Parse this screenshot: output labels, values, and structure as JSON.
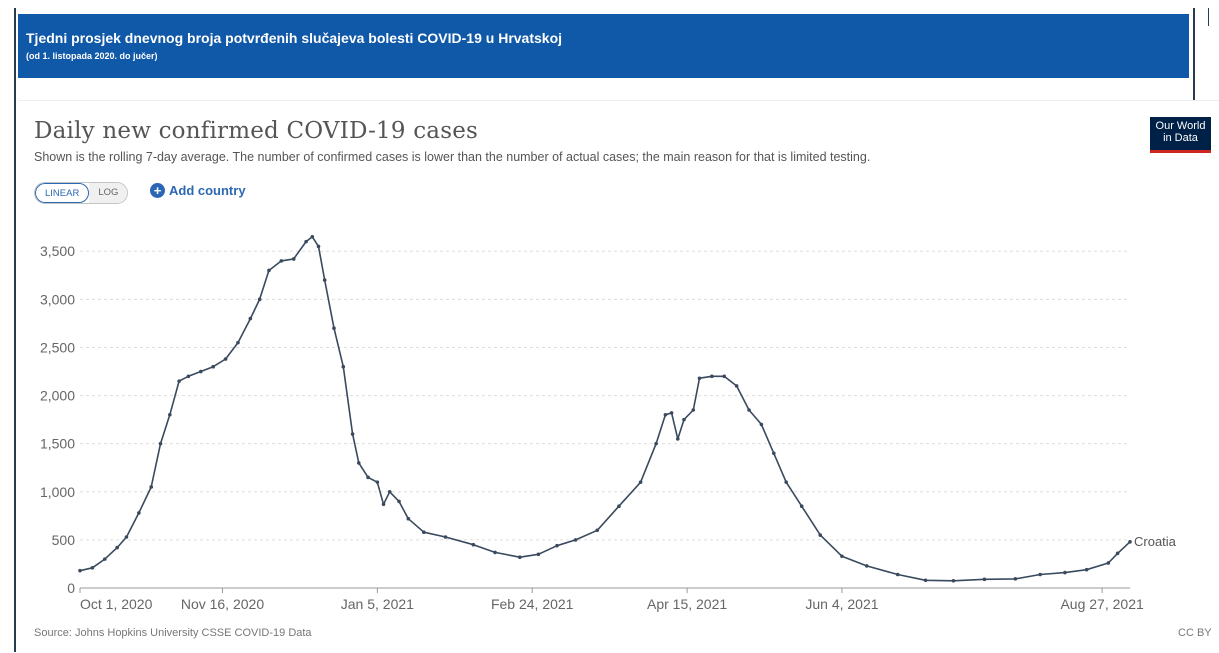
{
  "banner": {
    "title": "Tjedni prosjek dnevnog broja potvrđenih slučajeva bolesti COVID-19 u Hrvatskoj",
    "subtitle": "(od 1. listopada 2020. do jučer)"
  },
  "header": {
    "title": "Daily new confirmed COVID-19 cases",
    "subtitle": "Shown is the rolling 7-day average. The number of confirmed cases is lower than the number of actual cases; the main reason for that is limited testing.",
    "logo_line1": "Our World",
    "logo_line2": "in Data"
  },
  "controls": {
    "linear_label": "LINEAR",
    "log_label": "LOG",
    "add_country_label": "Add country",
    "add_icon": "plus-circle-icon"
  },
  "footer": {
    "source": "Source: Johns Hopkins University CSSE COVID-19 Data",
    "license": "CC BY"
  },
  "colors": {
    "banner": "#1058a8",
    "line": "#3a4a5e",
    "accent": "#2c67b5"
  },
  "chart_data": {
    "type": "line",
    "title": "Daily new confirmed COVID-19 cases",
    "x_start": "2020-10-01",
    "x_end": "2021-09-05",
    "ylim": [
      0,
      3700
    ],
    "yticks": [
      0,
      500,
      1000,
      1500,
      2000,
      2500,
      3000,
      3500
    ],
    "ytick_labels": [
      "0",
      "500",
      "1,000",
      "1,500",
      "2,000",
      "2,500",
      "3,000",
      "3,500"
    ],
    "xticks": [
      "2020-10-01",
      "2020-11-16",
      "2021-01-05",
      "2021-02-24",
      "2021-04-15",
      "2021-06-04",
      "2021-08-27"
    ],
    "xtick_labels": [
      "Oct 1, 2020",
      "Nov 16, 2020",
      "Jan 5, 2021",
      "Feb 24, 2021",
      "Apr 15, 2021",
      "Jun 4, 2021",
      "Aug 27, 2021"
    ],
    "grid": "horizontal dashed",
    "series": [
      {
        "name": "Croatia",
        "points": [
          [
            "2020-10-01",
            180
          ],
          [
            "2020-10-05",
            210
          ],
          [
            "2020-10-09",
            300
          ],
          [
            "2020-10-13",
            420
          ],
          [
            "2020-10-16",
            530
          ],
          [
            "2020-10-20",
            780
          ],
          [
            "2020-10-24",
            1050
          ],
          [
            "2020-10-27",
            1500
          ],
          [
            "2020-10-30",
            1800
          ],
          [
            "2020-11-02",
            2150
          ],
          [
            "2020-11-05",
            2200
          ],
          [
            "2020-11-09",
            2250
          ],
          [
            "2020-11-13",
            2300
          ],
          [
            "2020-11-17",
            2380
          ],
          [
            "2020-11-21",
            2550
          ],
          [
            "2020-11-25",
            2800
          ],
          [
            "2020-11-28",
            3000
          ],
          [
            "2020-12-01",
            3300
          ],
          [
            "2020-12-05",
            3400
          ],
          [
            "2020-12-09",
            3420
          ],
          [
            "2020-12-13",
            3600
          ],
          [
            "2020-12-15",
            3650
          ],
          [
            "2020-12-17",
            3550
          ],
          [
            "2020-12-19",
            3200
          ],
          [
            "2020-12-22",
            2700
          ],
          [
            "2020-12-25",
            2300
          ],
          [
            "2020-12-28",
            1600
          ],
          [
            "2020-12-30",
            1300
          ],
          [
            "2021-01-02",
            1150
          ],
          [
            "2021-01-05",
            1100
          ],
          [
            "2021-01-07",
            870
          ],
          [
            "2021-01-09",
            1000
          ],
          [
            "2021-01-12",
            900
          ],
          [
            "2021-01-15",
            720
          ],
          [
            "2021-01-20",
            580
          ],
          [
            "2021-01-27",
            530
          ],
          [
            "2021-02-05",
            450
          ],
          [
            "2021-02-12",
            370
          ],
          [
            "2021-02-20",
            320
          ],
          [
            "2021-02-26",
            350
          ],
          [
            "2021-03-04",
            440
          ],
          [
            "2021-03-10",
            500
          ],
          [
            "2021-03-17",
            600
          ],
          [
            "2021-03-24",
            850
          ],
          [
            "2021-03-31",
            1100
          ],
          [
            "2021-04-05",
            1500
          ],
          [
            "2021-04-08",
            1800
          ],
          [
            "2021-04-10",
            1820
          ],
          [
            "2021-04-12",
            1550
          ],
          [
            "2021-04-14",
            1750
          ],
          [
            "2021-04-17",
            1850
          ],
          [
            "2021-04-19",
            2180
          ],
          [
            "2021-04-23",
            2200
          ],
          [
            "2021-04-27",
            2200
          ],
          [
            "2021-05-01",
            2100
          ],
          [
            "2021-05-05",
            1850
          ],
          [
            "2021-05-09",
            1700
          ],
          [
            "2021-05-13",
            1400
          ],
          [
            "2021-05-17",
            1100
          ],
          [
            "2021-05-22",
            850
          ],
          [
            "2021-05-28",
            550
          ],
          [
            "2021-06-04",
            330
          ],
          [
            "2021-06-12",
            230
          ],
          [
            "2021-06-22",
            140
          ],
          [
            "2021-07-01",
            80
          ],
          [
            "2021-07-10",
            75
          ],
          [
            "2021-07-20",
            90
          ],
          [
            "2021-07-30",
            95
          ],
          [
            "2021-08-07",
            140
          ],
          [
            "2021-08-15",
            160
          ],
          [
            "2021-08-22",
            190
          ],
          [
            "2021-08-29",
            260
          ],
          [
            "2021-09-01",
            360
          ],
          [
            "2021-09-05",
            480
          ]
        ]
      }
    ]
  }
}
